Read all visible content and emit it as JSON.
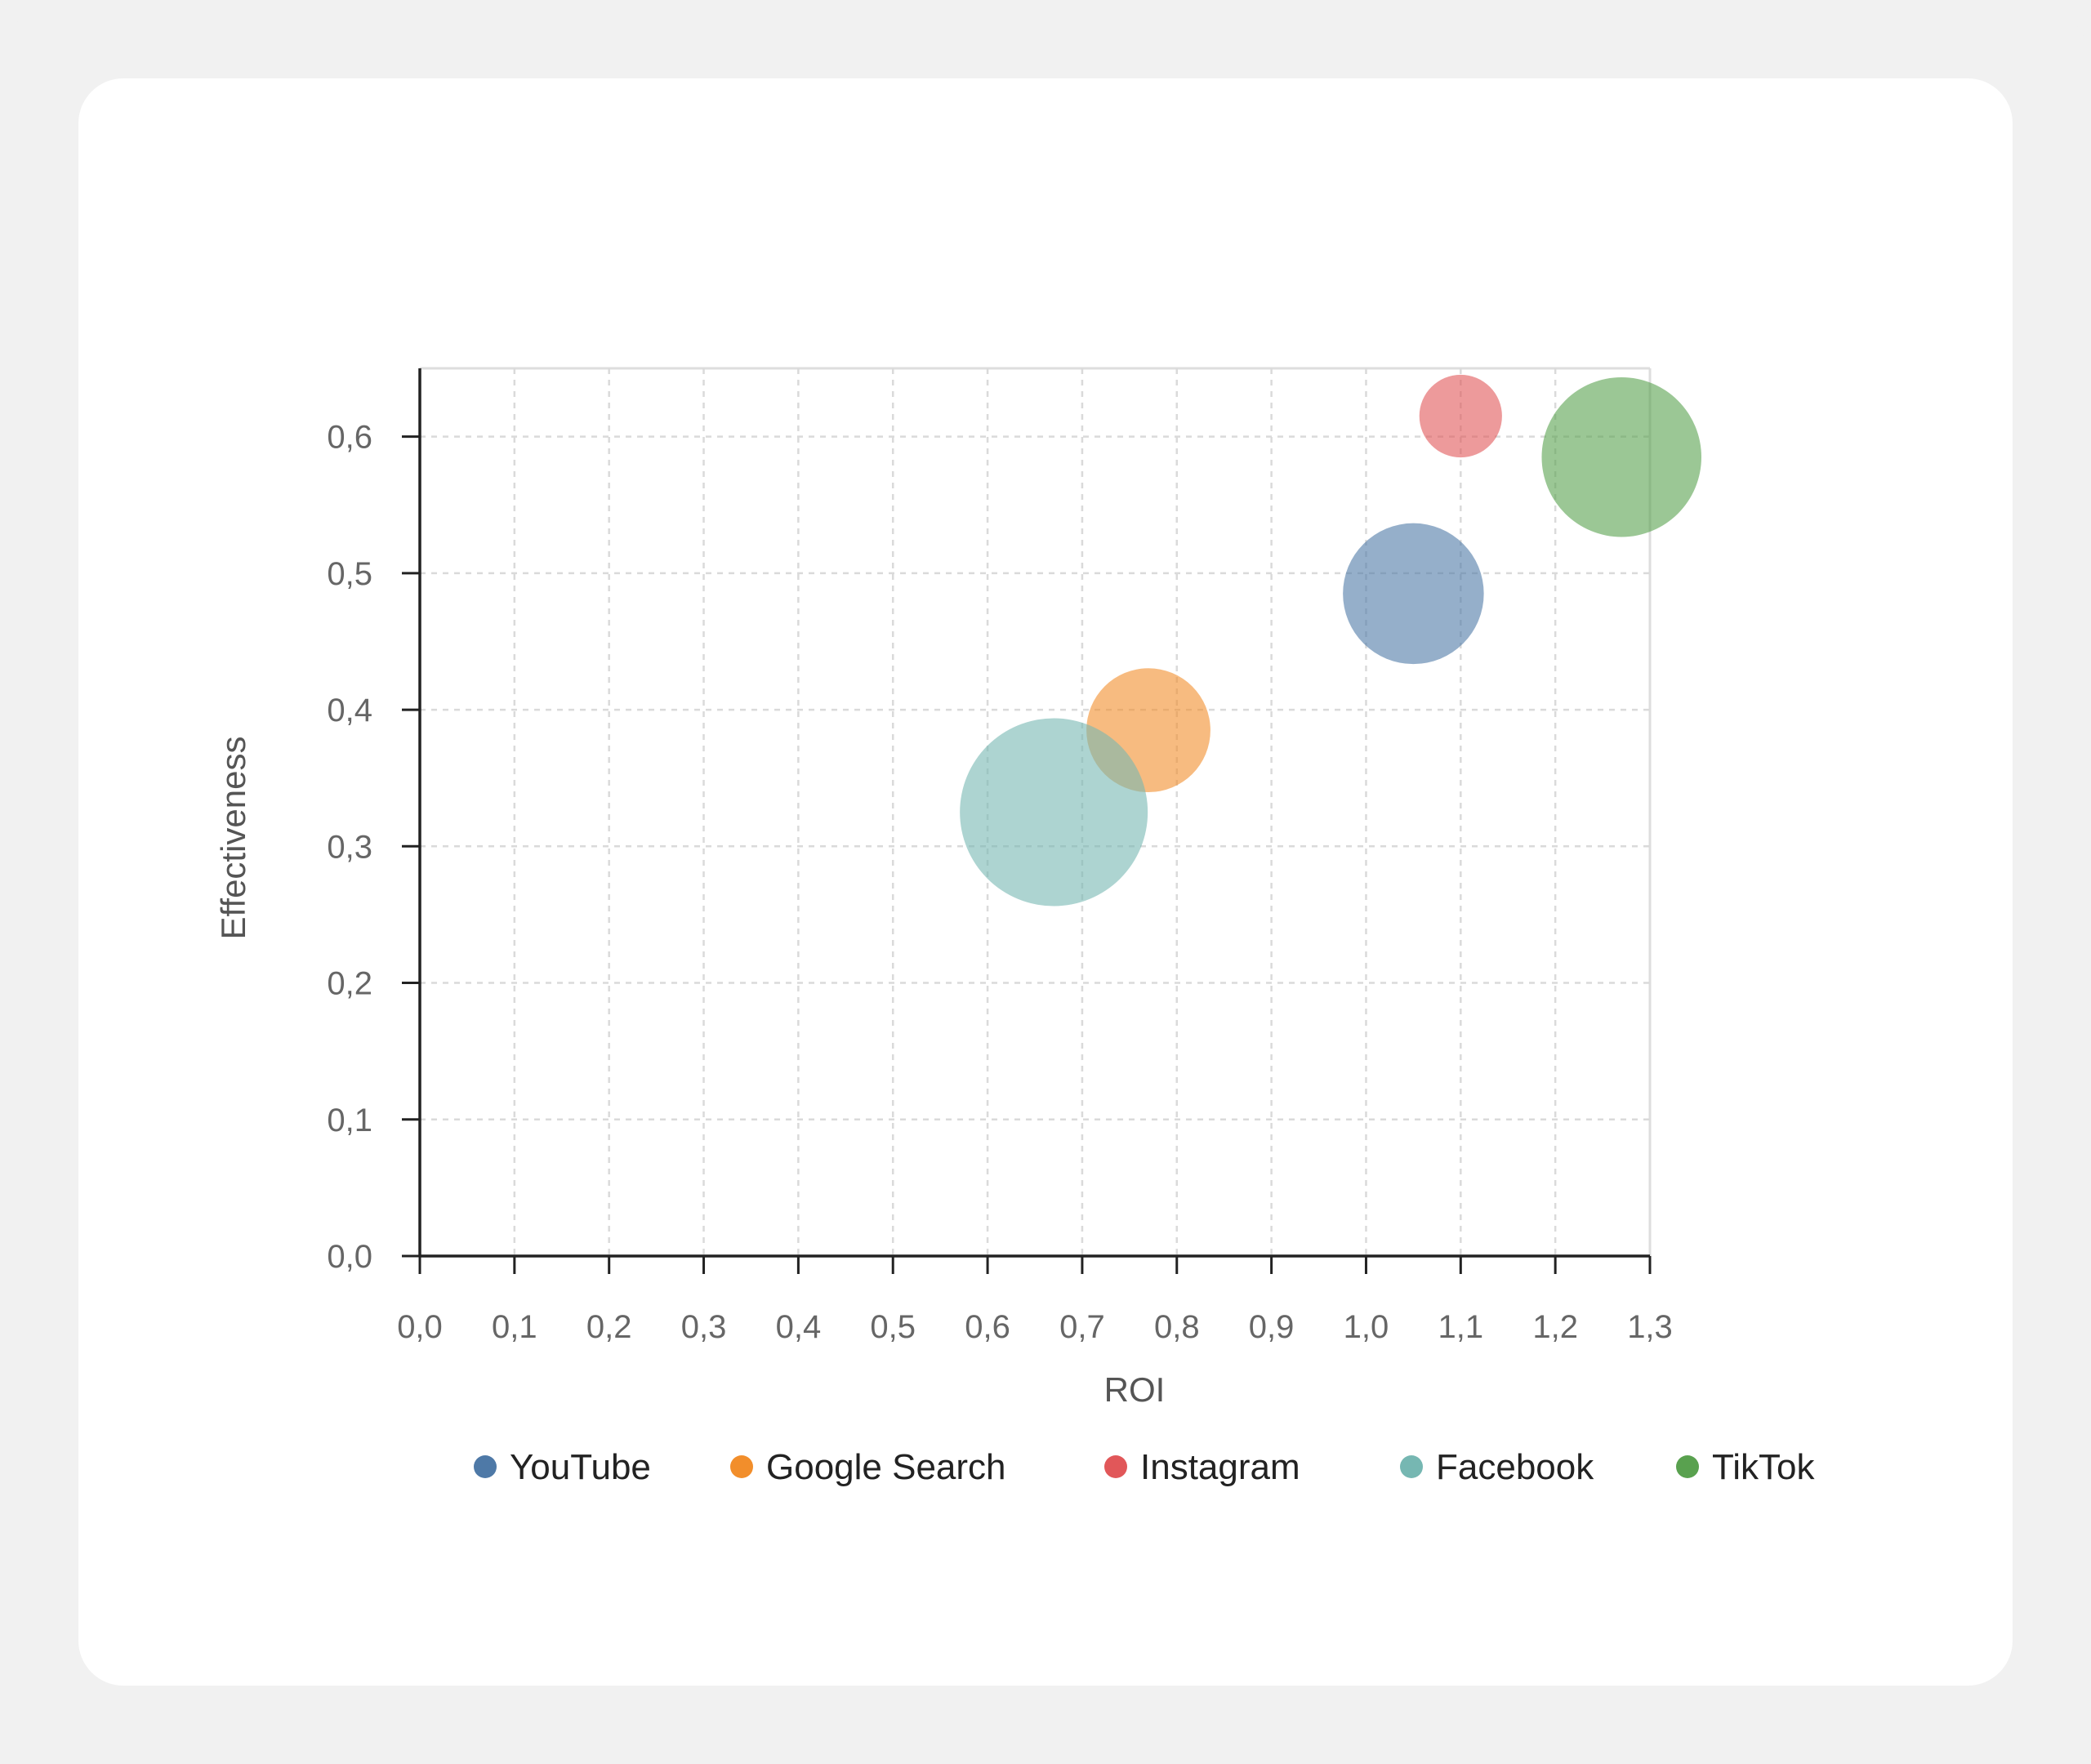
{
  "chart_data": {
    "type": "scatter",
    "variant": "bubble",
    "title": "",
    "xlabel": "ROI",
    "ylabel": "Effectiveness",
    "xlim": [
      0.0,
      1.3
    ],
    "ylim": [
      0.0,
      0.65
    ],
    "x_ticks": [
      "0,0",
      "0,1",
      "0,2",
      "0,3",
      "0,4",
      "0,5",
      "0,6",
      "0,7",
      "0,8",
      "0,9",
      "1,0",
      "1,1",
      "1,2",
      "1,3"
    ],
    "y_ticks": [
      "0,0",
      "0,1",
      "0,2",
      "0,3",
      "0,4",
      "0,5",
      "0,6"
    ],
    "grid": true,
    "legend_position": "bottom",
    "series": [
      {
        "name": "YouTube",
        "color": "#4e79a7",
        "x": 1.05,
        "y": 0.485,
        "size": 0.75
      },
      {
        "name": "Google Search",
        "color": "#f28e2b",
        "x": 0.77,
        "y": 0.385,
        "size": 0.66
      },
      {
        "name": "Instagram",
        "color": "#e15759",
        "x": 1.1,
        "y": 0.615,
        "size": 0.44
      },
      {
        "name": "Facebook",
        "color": "#76b7b2",
        "x": 0.67,
        "y": 0.325,
        "size": 1.0
      },
      {
        "name": "TikTok",
        "color": "#59a14f",
        "x": 1.27,
        "y": 0.585,
        "size": 0.85
      }
    ]
  }
}
